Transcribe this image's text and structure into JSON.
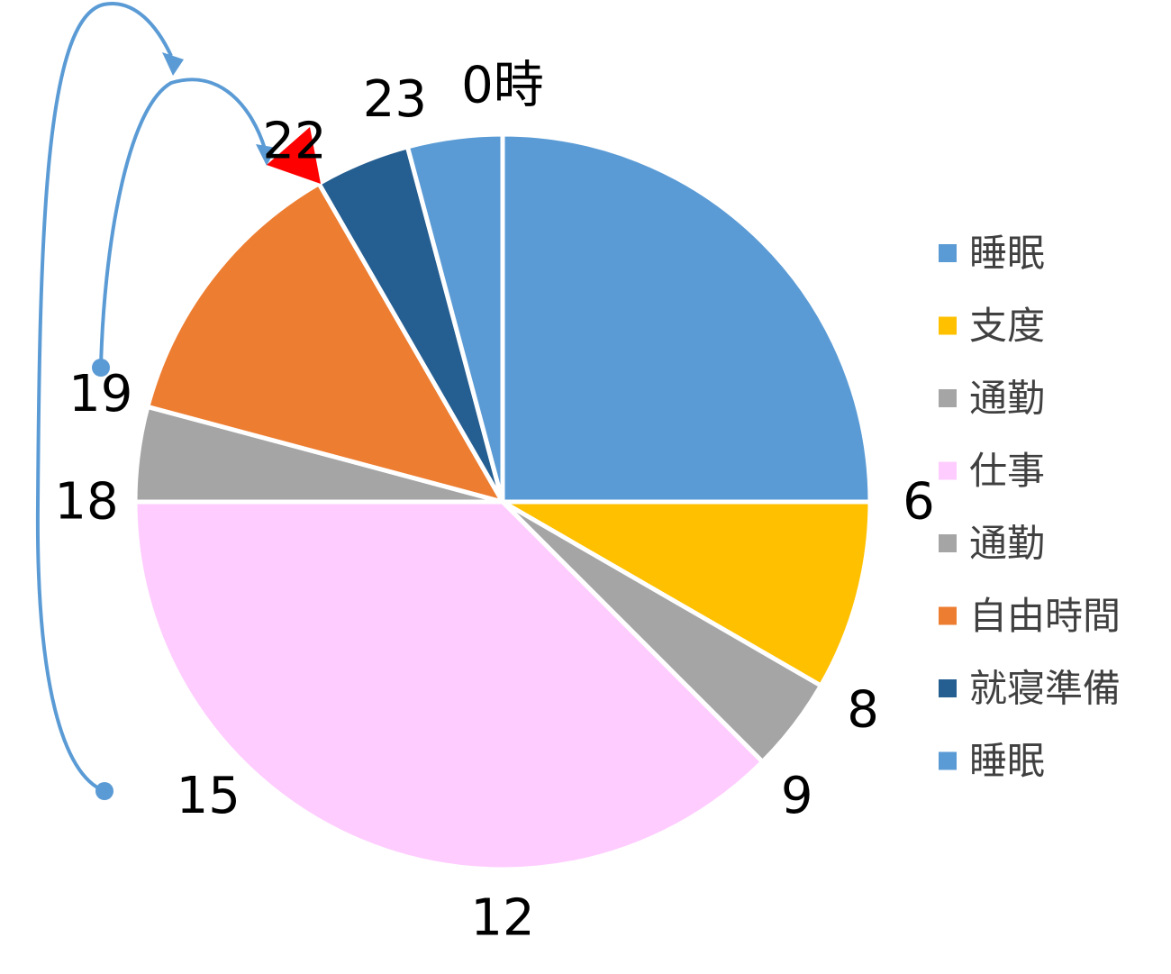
{
  "chart_data": {
    "type": "pie",
    "unit": "時",
    "total_hours": 24,
    "start_angle_deg": 0,
    "direction": "clockwise",
    "slices": [
      {
        "name": "睡眠",
        "start": 0,
        "end": 6,
        "color": "#5B9BD5"
      },
      {
        "name": "支度",
        "start": 6,
        "end": 8,
        "color": "#FFC000"
      },
      {
        "name": "通勤",
        "start": 8,
        "end": 9,
        "color": "#A5A5A5"
      },
      {
        "name": "仕事",
        "start": 9,
        "end": 18,
        "color": "#FFCCFF"
      },
      {
        "name": "通勤",
        "start": 18,
        "end": 19,
        "color": "#A5A5A5"
      },
      {
        "name": "自由時間",
        "start": 19,
        "end": 22,
        "color": "#ED7D31"
      },
      {
        "name": "就寝準備",
        "start": 22,
        "end": 23,
        "color": "#255E91"
      },
      {
        "name": "睡眠",
        "start": 23,
        "end": 24,
        "color": "#5B9BD5"
      }
    ],
    "hour_labels": [
      {
        "hour": 0,
        "text": "0時",
        "color": "#000000"
      },
      {
        "hour": 6,
        "text": "6",
        "color": "#000000"
      },
      {
        "hour": 8,
        "text": "8",
        "color": "#000000"
      },
      {
        "hour": 9,
        "text": "9",
        "color": "#000000"
      },
      {
        "hour": 12,
        "text": "12",
        "color": "#000000"
      },
      {
        "hour": 15,
        "text": "15",
        "color": "#000000"
      },
      {
        "hour": 18,
        "text": "18",
        "color": "#000000"
      },
      {
        "hour": 19,
        "text": "19",
        "color": "#000000"
      },
      {
        "hour": 22,
        "text": "22",
        "color": "#FF0000"
      },
      {
        "hour": 23,
        "text": "23",
        "color": "#000000"
      }
    ],
    "legend": {
      "placement": "right",
      "items": [
        {
          "label": "睡眠",
          "color": "#5B9BD5"
        },
        {
          "label": "支度",
          "color": "#FFC000"
        },
        {
          "label": "通勤",
          "color": "#A5A5A5"
        },
        {
          "label": "仕事",
          "color": "#FFCCFF"
        },
        {
          "label": "通勤",
          "color": "#A5A5A5"
        },
        {
          "label": "自由時間",
          "color": "#ED7D31"
        },
        {
          "label": "就寝準備",
          "color": "#255E91"
        },
        {
          "label": "睡眠",
          "color": "#5B9BD5"
        }
      ]
    },
    "annotations": [
      {
        "type": "arrow",
        "from_hour": 19,
        "to_hour": 22,
        "color": "#5B9BD5"
      },
      {
        "type": "arrow",
        "from_hour": 15,
        "to_hour": 22,
        "color": "#5B9BD5"
      },
      {
        "type": "marker",
        "hour": 22,
        "shape": "triangle",
        "color": "#FF0000"
      }
    ]
  }
}
